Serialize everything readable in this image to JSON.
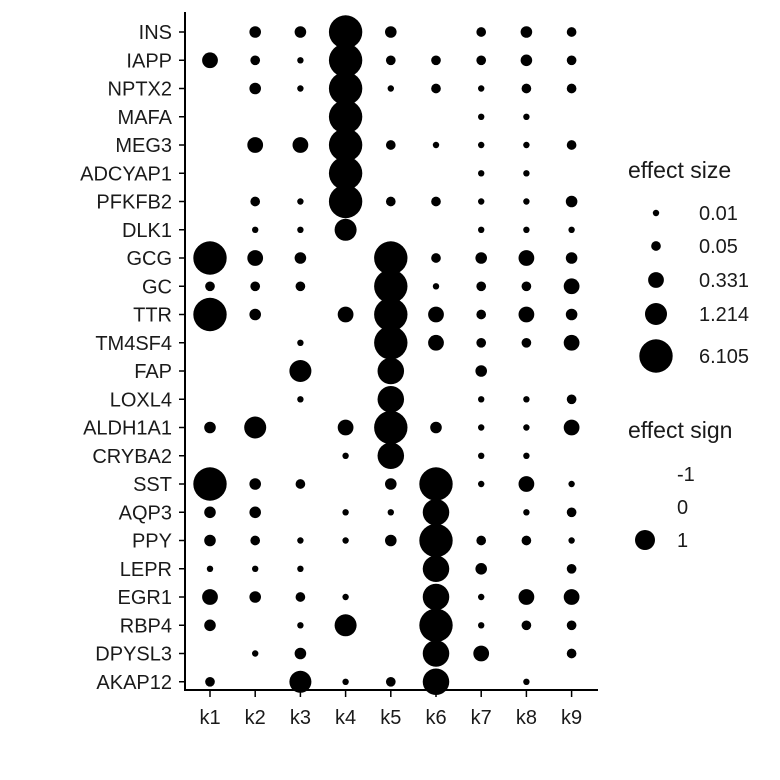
{
  "chart_data": {
    "type": "dotplot",
    "genes": [
      "INS",
      "IAPP",
      "NPTX2",
      "MAFA",
      "MEG3",
      "ADCYAP1",
      "PFKFB2",
      "DLK1",
      "GCG",
      "GC",
      "TTR",
      "TM4SF4",
      "FAP",
      "LOXL4",
      "ALDH1A1",
      "CRYBA2",
      "SST",
      "AQP3",
      "PPY",
      "LEPR",
      "EGR1",
      "RBP4",
      "DPYSL3",
      "AKAP12"
    ],
    "clusters": [
      "k1",
      "k2",
      "k3",
      "k4",
      "k5",
      "k6",
      "k7",
      "k8",
      "k9"
    ],
    "effect_size": [
      [
        0,
        0.1,
        0.1,
        6.105,
        0.1,
        0,
        0.05,
        0.1,
        0.05
      ],
      [
        0.331,
        0.05,
        0.01,
        6.105,
        0.05,
        0.05,
        0.05,
        0.1,
        0.05
      ],
      [
        0,
        0.1,
        0.01,
        6.105,
        0.01,
        0.05,
        0.01,
        0.05,
        0.05
      ],
      [
        0,
        0,
        0,
        6.105,
        0,
        0,
        0.01,
        0.01,
        0
      ],
      [
        0,
        0.331,
        0.331,
        6.105,
        0.05,
        0.01,
        0.01,
        0.01,
        0.05
      ],
      [
        0,
        0,
        0,
        6.105,
        0,
        0,
        0.01,
        0.01,
        0
      ],
      [
        0,
        0.05,
        0.01,
        6.105,
        0.05,
        0.05,
        0.01,
        0.01,
        0.1
      ],
      [
        0,
        0.01,
        0.01,
        1.214,
        0,
        0,
        0.01,
        0.01,
        0.01
      ],
      [
        6.105,
        0.331,
        0.1,
        0,
        6.105,
        0.05,
        0.1,
        0.331,
        0.1
      ],
      [
        0.05,
        0.05,
        0.05,
        0,
        6.105,
        0.01,
        0.05,
        0.05,
        0.331
      ],
      [
        6.105,
        0.1,
        0,
        0.331,
        6.105,
        0.331,
        0.05,
        0.331,
        0.1
      ],
      [
        0,
        0,
        0.01,
        0,
        6.105,
        0.331,
        0.05,
        0.05,
        0.331
      ],
      [
        0,
        0,
        1.214,
        0,
        2.5,
        0,
        0.1,
        0,
        0
      ],
      [
        0,
        0,
        0.01,
        0,
        2.5,
        0,
        0.01,
        0.01,
        0.05
      ],
      [
        0.1,
        1.214,
        0,
        0.331,
        6.105,
        0.1,
        0.01,
        0.01,
        0.331
      ],
      [
        0,
        0,
        0,
        0.01,
        2.5,
        0,
        0.01,
        0.01,
        0
      ],
      [
        6.105,
        0.1,
        0.05,
        0,
        0.1,
        6.105,
        0.01,
        0.331,
        0.01
      ],
      [
        0.1,
        0.1,
        0,
        0.01,
        0.01,
        2.5,
        0,
        0.01,
        0.05
      ],
      [
        0.1,
        0.05,
        0.01,
        0.01,
        0.1,
        6.105,
        0.05,
        0.05,
        0.01
      ],
      [
        0.01,
        0.01,
        0.01,
        0,
        0,
        2.5,
        0.1,
        0,
        0.05
      ],
      [
        0.331,
        0.1,
        0.05,
        0.01,
        0,
        2.5,
        0.01,
        0.331,
        0.331
      ],
      [
        0.1,
        0,
        0.01,
        1.214,
        0,
        6.105,
        0.01,
        0.05,
        0.05
      ],
      [
        0,
        0.01,
        0.1,
        0,
        0,
        2.5,
        0.331,
        0,
        0.05
      ],
      [
        0.05,
        0,
        1.214,
        0.01,
        0.05,
        2.5,
        0,
        0.01,
        0
      ]
    ],
    "size_legend": {
      "title": "effect size",
      "labels": [
        "0.01",
        "0.05",
        "0.331",
        "1.214",
        "6.105"
      ],
      "values": [
        0.01,
        0.05,
        0.331,
        1.214,
        6.105
      ]
    },
    "sign_legend": {
      "title": "effect sign",
      "labels": [
        "-1",
        "0",
        "1"
      ]
    },
    "dot_color": "#000000",
    "grid": false
  }
}
